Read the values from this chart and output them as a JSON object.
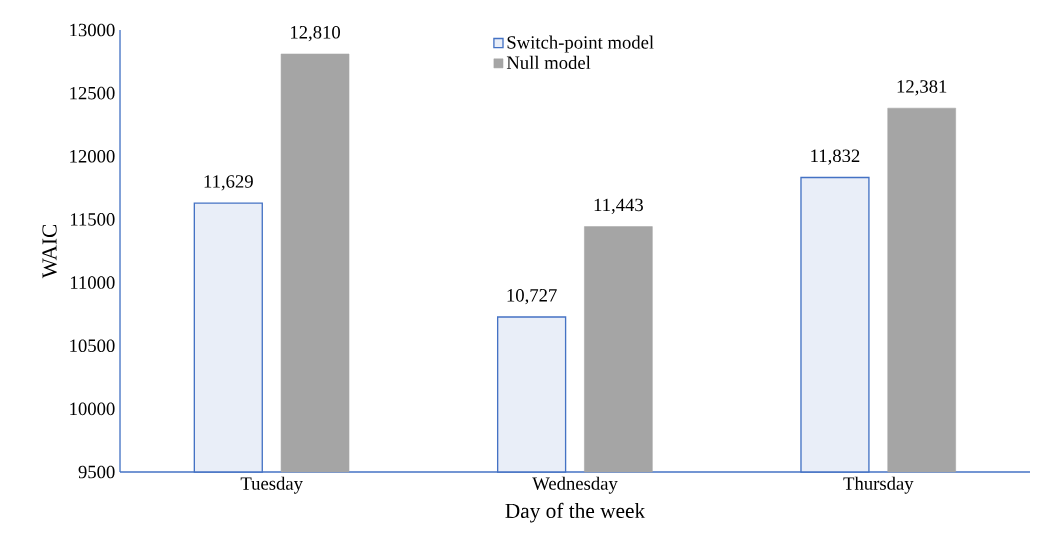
{
  "chart_data": {
    "type": "bar",
    "xlabel": "Day of the week",
    "ylabel": "WAIC",
    "categories": [
      "Tuesday",
      "Wednesday",
      "Thursday"
    ],
    "series": [
      {
        "name": "Switch-point model",
        "color": "#4472c4",
        "values": [
          11629,
          10727,
          11832
        ],
        "value_labels": [
          "11,629",
          "10,727",
          "11,832"
        ]
      },
      {
        "name": "Null model",
        "color": "#a5a5a5",
        "values": [
          12810,
          11443,
          12381
        ],
        "value_labels": [
          "12,810",
          "11,443",
          "12,381"
        ]
      }
    ],
    "ylim": [
      9500,
      13000
    ],
    "yticks": [
      9500,
      10000,
      10500,
      11000,
      11500,
      12000,
      12500,
      13000
    ],
    "grid": false,
    "legend": "top"
  }
}
